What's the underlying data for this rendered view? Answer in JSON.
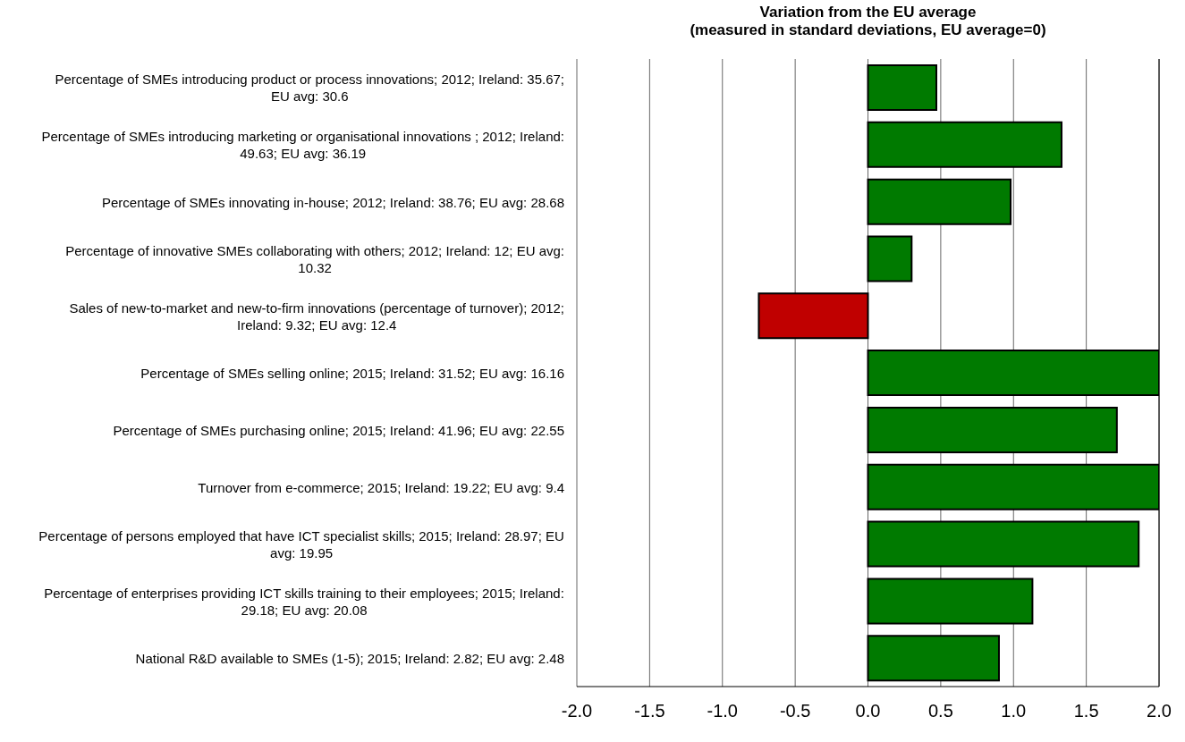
{
  "chart_data": {
    "type": "bar",
    "orientation": "horizontal",
    "title": "Variation from the EU average",
    "subtitle": "(measured in standard deviations, EU average=0)",
    "categories": [
      "Percentage of SMEs introducing product or process innovations; 2012; Ireland: 35.67; EU avg: 30.6",
      "Percentage of SMEs introducing marketing or organisational innovations ; 2012; Ireland: 49.63; EU avg: 36.19",
      "Percentage of SMEs innovating in-house; 2012; Ireland: 38.76; EU avg: 28.68",
      "Percentage of innovative SMEs collaborating with others; 2012; Ireland: 12; EU avg: 10.32",
      "Sales of new-to-market and new-to-firm innovations (percentage of turnover); 2012; Ireland: 9.32; EU avg: 12.4",
      "Percentage of SMEs selling online; 2015; Ireland: 31.52; EU avg: 16.16",
      "Percentage of SMEs purchasing online; 2015; Ireland: 41.96; EU avg: 22.55",
      "Turnover from e-commerce; 2015; Ireland: 19.22; EU avg: 9.4",
      "Percentage of persons employed that have ICT specialist skills; 2015; Ireland: 28.97; EU avg: 19.95",
      "Percentage of enterprises providing ICT skills training to their employees; 2015; Ireland: 29.18; EU avg: 20.08",
      "National R&D available to SMEs (1-5); 2015; Ireland: 2.82; EU avg: 2.48"
    ],
    "values": [
      0.47,
      1.33,
      0.98,
      0.3,
      -0.75,
      2.0,
      1.71,
      2.0,
      1.86,
      1.13,
      0.9
    ],
    "colors": [
      "#007a00",
      "#007a00",
      "#007a00",
      "#007a00",
      "#c00000",
      "#007a00",
      "#007a00",
      "#007a00",
      "#007a00",
      "#007a00",
      "#007a00"
    ],
    "xlim": [
      -2,
      2
    ],
    "xticks": [
      {
        "value": -2,
        "label": "-2.0"
      },
      {
        "value": -1.5,
        "label": "-1.5"
      },
      {
        "value": -1,
        "label": "-1.0"
      },
      {
        "value": -0.5,
        "label": "-0.5"
      },
      {
        "value": 0,
        "label": "0.0"
      },
      {
        "value": 0.5,
        "label": "0.5"
      },
      {
        "value": 1,
        "label": "1.0"
      },
      {
        "value": 1.5,
        "label": "1.5"
      },
      {
        "value": 2,
        "label": "2.0"
      }
    ],
    "grid": "x"
  }
}
